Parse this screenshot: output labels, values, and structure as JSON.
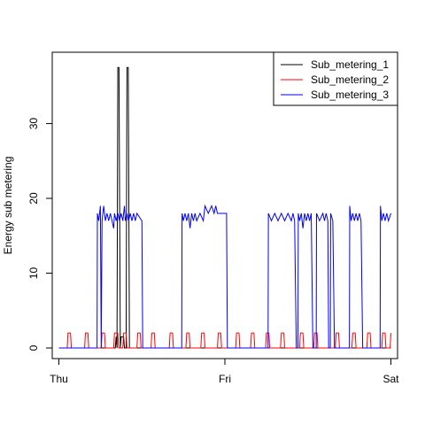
{
  "chart_data": {
    "type": "line",
    "title": "",
    "xlabel": "",
    "ylabel": "Energy sub metering",
    "x_ticks": [
      {
        "label": "Thu",
        "day": 0
      },
      {
        "label": "Fri",
        "day": 1
      },
      {
        "label": "Sat",
        "day": 2
      }
    ],
    "xlim": [
      -0.04,
      2.04
    ],
    "ylim": [
      0,
      38
    ],
    "y_ticks": [
      0,
      10,
      20,
      30
    ],
    "grid": false,
    "legend_position": "top-right",
    "series": [
      {
        "name": "Sub_metering_1",
        "color": "#000000",
        "points": [
          [
            0,
            0
          ],
          [
            0.34,
            0
          ],
          [
            0.345,
            1.5
          ],
          [
            0.35,
            0
          ],
          [
            0.355,
            37.5
          ],
          [
            0.362,
            37.5
          ],
          [
            0.37,
            0
          ],
          [
            0.375,
            1.5
          ],
          [
            0.39,
            1.5
          ],
          [
            0.395,
            0
          ],
          [
            0.405,
            0
          ],
          [
            0.41,
            37.5
          ],
          [
            0.418,
            37.5
          ],
          [
            0.425,
            0
          ],
          [
            2,
            0
          ]
        ]
      },
      {
        "name": "Sub_metering_2",
        "color": "#ff0000",
        "points": [
          [
            0,
            0
          ],
          [
            0.05,
            0
          ],
          [
            0.055,
            2
          ],
          [
            0.07,
            2
          ],
          [
            0.075,
            0
          ],
          [
            0.155,
            0
          ],
          [
            0.16,
            2
          ],
          [
            0.175,
            2
          ],
          [
            0.18,
            0
          ],
          [
            0.255,
            0
          ],
          [
            0.26,
            2
          ],
          [
            0.275,
            2
          ],
          [
            0.28,
            0
          ],
          [
            0.33,
            0
          ],
          [
            0.335,
            2
          ],
          [
            0.355,
            2
          ],
          [
            0.36,
            0
          ],
          [
            0.385,
            0
          ],
          [
            0.39,
            2
          ],
          [
            0.405,
            2
          ],
          [
            0.41,
            0
          ],
          [
            0.47,
            0
          ],
          [
            0.475,
            2
          ],
          [
            0.49,
            2
          ],
          [
            0.495,
            0
          ],
          [
            0.555,
            0
          ],
          [
            0.56,
            2
          ],
          [
            0.575,
            2
          ],
          [
            0.58,
            0
          ],
          [
            0.665,
            0
          ],
          [
            0.67,
            2
          ],
          [
            0.685,
            2
          ],
          [
            0.69,
            0
          ],
          [
            0.765,
            0
          ],
          [
            0.77,
            2
          ],
          [
            0.785,
            2
          ],
          [
            0.79,
            0
          ],
          [
            0.855,
            0
          ],
          [
            0.86,
            2
          ],
          [
            0.875,
            2
          ],
          [
            0.88,
            0
          ],
          [
            0.955,
            0
          ],
          [
            0.96,
            2
          ],
          [
            0.975,
            2
          ],
          [
            0.98,
            0
          ],
          [
            1.065,
            0
          ],
          [
            1.07,
            2
          ],
          [
            1.085,
            2
          ],
          [
            1.09,
            0
          ],
          [
            1.155,
            0
          ],
          [
            1.16,
            2
          ],
          [
            1.175,
            2
          ],
          [
            1.18,
            0
          ],
          [
            1.245,
            0
          ],
          [
            1.25,
            2
          ],
          [
            1.265,
            2
          ],
          [
            1.27,
            0
          ],
          [
            1.335,
            0
          ],
          [
            1.34,
            2
          ],
          [
            1.355,
            2
          ],
          [
            1.36,
            0
          ],
          [
            1.45,
            0
          ],
          [
            1.455,
            2
          ],
          [
            1.47,
            2
          ],
          [
            1.475,
            0
          ],
          [
            1.535,
            0
          ],
          [
            1.54,
            2
          ],
          [
            1.555,
            2
          ],
          [
            1.56,
            0
          ],
          [
            1.665,
            0
          ],
          [
            1.67,
            2
          ],
          [
            1.685,
            2
          ],
          [
            1.69,
            0
          ],
          [
            1.765,
            0
          ],
          [
            1.77,
            2
          ],
          [
            1.785,
            2
          ],
          [
            1.79,
            0
          ],
          [
            1.855,
            0
          ],
          [
            1.86,
            2
          ],
          [
            1.875,
            2
          ],
          [
            1.88,
            0
          ],
          [
            1.945,
            0
          ],
          [
            1.95,
            2
          ],
          [
            1.965,
            2
          ],
          [
            1.97,
            0
          ],
          [
            1.995,
            0
          ],
          [
            2,
            2
          ]
        ]
      },
      {
        "name": "Sub_metering_3",
        "color": "#0000ff",
        "points": [
          [
            0,
            0
          ],
          [
            0.23,
            0
          ],
          [
            0.232,
            18
          ],
          [
            0.24,
            17
          ],
          [
            0.25,
            19
          ],
          [
            0.255,
            0
          ],
          [
            0.26,
            17
          ],
          [
            0.27,
            19
          ],
          [
            0.28,
            17
          ],
          [
            0.29,
            18
          ],
          [
            0.3,
            17
          ],
          [
            0.31,
            18
          ],
          [
            0.32,
            17
          ],
          [
            0.33,
            16
          ],
          [
            0.335,
            18
          ],
          [
            0.345,
            17
          ],
          [
            0.355,
            18
          ],
          [
            0.365,
            17
          ],
          [
            0.375,
            18
          ],
          [
            0.385,
            17
          ],
          [
            0.395,
            19
          ],
          [
            0.4,
            17
          ],
          [
            0.41,
            18
          ],
          [
            0.42,
            17
          ],
          [
            0.43,
            18
          ],
          [
            0.44,
            17
          ],
          [
            0.45,
            18
          ],
          [
            0.46,
            17
          ],
          [
            0.47,
            18
          ],
          [
            0.5,
            17
          ],
          [
            0.505,
            0
          ],
          [
            0.74,
            0
          ],
          [
            0.742,
            18
          ],
          [
            0.75,
            17
          ],
          [
            0.76,
            18
          ],
          [
            0.77,
            17
          ],
          [
            0.78,
            18
          ],
          [
            0.79,
            16
          ],
          [
            0.8,
            18
          ],
          [
            0.81,
            17
          ],
          [
            0.82,
            18
          ],
          [
            0.83,
            17
          ],
          [
            0.85,
            18
          ],
          [
            0.87,
            17
          ],
          [
            0.88,
            19
          ],
          [
            0.9,
            18
          ],
          [
            0.92,
            19
          ],
          [
            0.935,
            18
          ],
          [
            0.945,
            19
          ],
          [
            0.955,
            18
          ],
          [
            1.01,
            18
          ],
          [
            1.015,
            0
          ],
          [
            1.26,
            0
          ],
          [
            1.262,
            18
          ],
          [
            1.28,
            17
          ],
          [
            1.3,
            18
          ],
          [
            1.32,
            17
          ],
          [
            1.34,
            18
          ],
          [
            1.36,
            17
          ],
          [
            1.38,
            18
          ],
          [
            1.4,
            17
          ],
          [
            1.41,
            18
          ],
          [
            1.42,
            17
          ],
          [
            1.43,
            0
          ],
          [
            1.44,
            0
          ],
          [
            1.442,
            18
          ],
          [
            1.45,
            17
          ],
          [
            1.46,
            18
          ],
          [
            1.47,
            16
          ],
          [
            1.48,
            18
          ],
          [
            1.49,
            17
          ],
          [
            1.5,
            18
          ],
          [
            1.51,
            17
          ],
          [
            1.52,
            18
          ],
          [
            1.53,
            0
          ],
          [
            1.55,
            0
          ],
          [
            1.552,
            18
          ],
          [
            1.57,
            17
          ],
          [
            1.59,
            18
          ],
          [
            1.6,
            17
          ],
          [
            1.61,
            18
          ],
          [
            1.62,
            17
          ],
          [
            1.625,
            0
          ],
          [
            1.635,
            0
          ],
          [
            1.637,
            18
          ],
          [
            1.65,
            17
          ],
          [
            1.66,
            0
          ],
          [
            1.75,
            0
          ],
          [
            1.752,
            19
          ],
          [
            1.76,
            17
          ],
          [
            1.77,
            18
          ],
          [
            1.78,
            17
          ],
          [
            1.79,
            18
          ],
          [
            1.8,
            17
          ],
          [
            1.81,
            18
          ],
          [
            1.82,
            17
          ],
          [
            1.83,
            0
          ],
          [
            1.845,
            0
          ],
          [
            1.847,
            0
          ],
          [
            1.855,
            0
          ],
          [
            1.857,
            0
          ],
          [
            1.935,
            0
          ],
          [
            1.937,
            19
          ],
          [
            1.945,
            17
          ],
          [
            1.955,
            18
          ],
          [
            1.965,
            17
          ],
          [
            1.975,
            18
          ],
          [
            1.985,
            17
          ],
          [
            2,
            18
          ]
        ]
      }
    ]
  }
}
